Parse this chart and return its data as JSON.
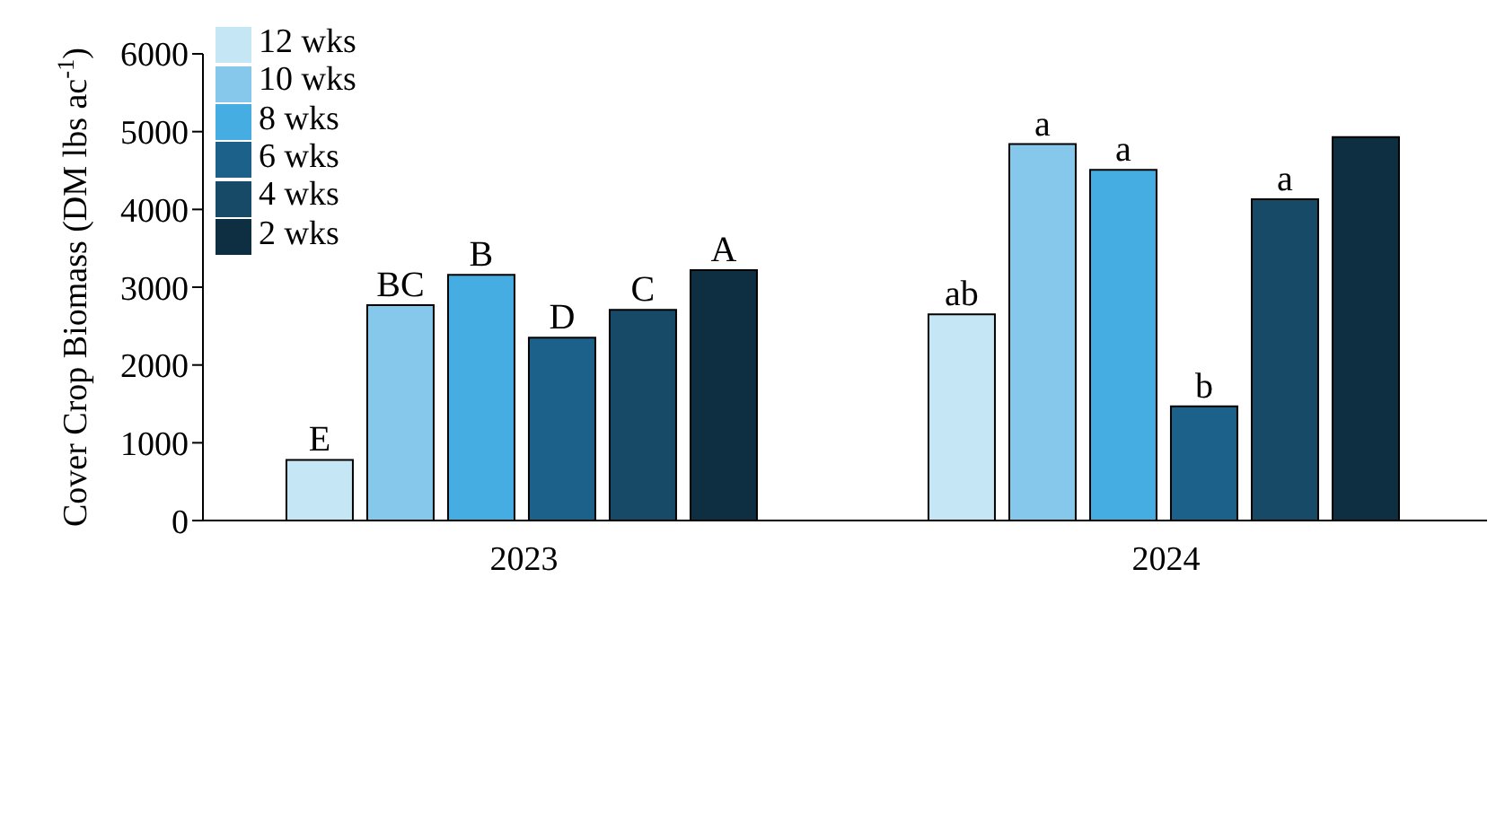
{
  "chart_data": {
    "type": "bar",
    "ylabel": "Cover Crop Biomass (DM lbs ac$^{-1}$)",
    "categories": [
      "2023",
      "2024"
    ],
    "series": [
      {
        "name": "12 wks",
        "color": "#c5e6f5",
        "values": [
          780,
          2650
        ],
        "value_labels": [
          "E",
          "ab"
        ]
      },
      {
        "name": "10 wks",
        "color": "#85c8ec",
        "values": [
          2770,
          4840
        ],
        "value_labels": [
          "BC",
          "a"
        ]
      },
      {
        "name": "8 wks",
        "color": "#46ade2",
        "values": [
          3160,
          4510
        ],
        "value_labels": [
          "B",
          "a"
        ]
      },
      {
        "name": "6 wks",
        "color": "#1b6189",
        "values": [
          2350,
          1470
        ],
        "value_labels": [
          "D",
          "b"
        ]
      },
      {
        "name": "4 wks",
        "color": "#164a66",
        "values": [
          2710,
          4130
        ],
        "value_labels": [
          "C",
          "a"
        ]
      },
      {
        "name": "2 wks",
        "color": "#0e2e42",
        "values": [
          3220,
          4930
        ],
        "value_labels": [
          "A",
          null
        ]
      }
    ],
    "ylim": [
      0,
      6000
    ],
    "yticks": [
      0,
      1000,
      2000,
      3000,
      4000,
      5000,
      6000
    ],
    "grid": false,
    "legend": "top left"
  }
}
